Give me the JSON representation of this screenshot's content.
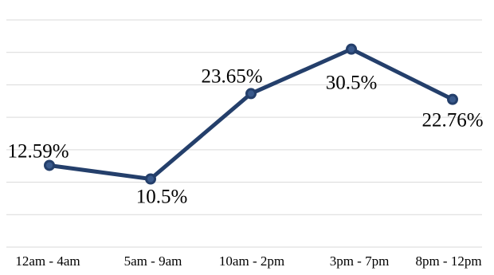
{
  "chart_data": {
    "type": "line",
    "categories": [
      "12am - 4am",
      "5am - 9am",
      "10am - 2pm",
      "3pm - 7pm",
      "8pm - 12pm"
    ],
    "series": [
      {
        "values": [
          12.59,
          10.5,
          23.65,
          30.5,
          22.76
        ],
        "data_labels": [
          "12.59%",
          "10.5%",
          "23.65%",
          "30.5%",
          "22.76%"
        ]
      }
    ],
    "ylim": [
      0,
      35
    ],
    "grid": true,
    "legend": "none",
    "colors": {
      "line": "#243f6b",
      "marker_fill": "#3a5a8c",
      "grid": "#d9d9d9"
    }
  }
}
